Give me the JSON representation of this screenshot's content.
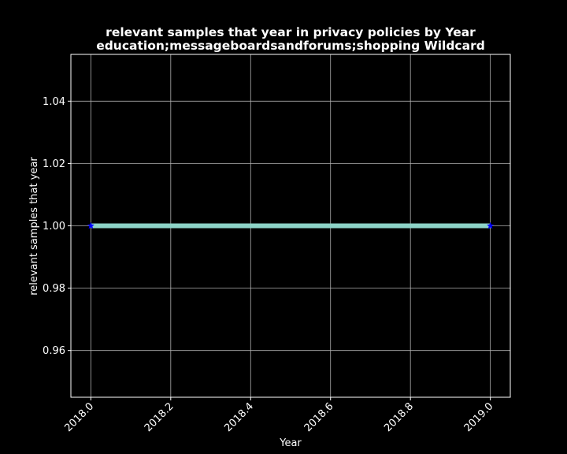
{
  "chart_data": {
    "type": "line",
    "title": "relevant samples that year in privacy policies by Year",
    "subtitle": "education;messageboardsandforums;shopping Wildcard",
    "xlabel": "Year",
    "ylabel": "relevant samples that year",
    "x": [
      2018.0,
      2019.0
    ],
    "series": [
      {
        "values": [
          1.0,
          1.0
        ],
        "line_color": "#8dd3c7",
        "marker": "star",
        "marker_color": "#0000ff"
      }
    ],
    "xlim": [
      2017.95,
      2019.05
    ],
    "ylim": [
      0.945,
      1.055
    ],
    "x_ticks": [
      2018.0,
      2018.2,
      2018.4,
      2018.6,
      2018.8,
      2019.0
    ],
    "x_tick_labels": [
      "2018.0",
      "2018.2",
      "2018.4",
      "2018.6",
      "2018.8",
      "2019.0"
    ],
    "y_ticks": [
      0.96,
      0.98,
      1.0,
      1.02,
      1.04
    ],
    "y_tick_labels": [
      "0.96",
      "0.98",
      "1.00",
      "1.02",
      "1.04"
    ],
    "grid": true,
    "background": "#000000",
    "text_color": "#ffffff",
    "grid_color": "#b0b0b0"
  }
}
